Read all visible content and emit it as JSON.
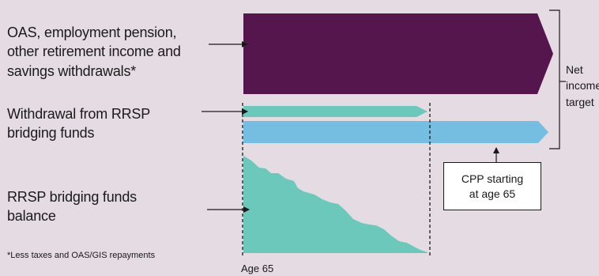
{
  "labels": {
    "income_sources": [
      "OAS, employment pension,",
      "other retirement income and",
      "savings withdrawals*"
    ],
    "rrsp_withdrawal": [
      "Withdrawal from RRSP",
      "bridging funds"
    ],
    "rrsp_balance": [
      "RRSP bridging funds",
      "balance"
    ],
    "footnote": "*Less taxes and OAS/GIS repayments",
    "age_marker": "Age 65",
    "cpp_callout": [
      "CPP starting",
      "at age 65"
    ],
    "net_income": [
      "Net",
      "income",
      "target"
    ]
  },
  "colors": {
    "background": "#e4dbe3",
    "income_band": "#54164c",
    "rrsp_teal": "#6cc8bb",
    "cpp_blue": "#76bde2",
    "ink": "#1a1a1a"
  }
}
